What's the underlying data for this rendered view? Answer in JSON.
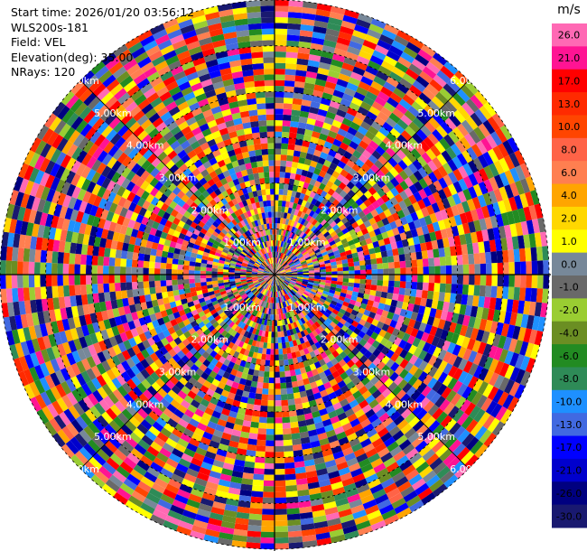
{
  "info": {
    "start_time": "Start time: 2026/01/20 03:56:12",
    "instrument": "WLS200s-181",
    "field": "Field: VEL",
    "elevation": "Elevation(deg): 35.00",
    "nrays": "NRays: 120"
  },
  "chart_data": {
    "type": "heatmap",
    "projection": "polar-ppi",
    "field": "VEL",
    "nrays": 120,
    "ring_labels": [
      "1.00km",
      "2.00km",
      "3.00km",
      "4.00km",
      "5.00km",
      "6.00km"
    ],
    "range_km_max": 6.0,
    "colorbar": {
      "unit": "m/s",
      "ticks": [
        "26.0",
        "21.0",
        "17.0",
        "13.0",
        "10.0",
        "8.0",
        "6.0",
        "4.0",
        "2.0",
        "1.0",
        "0.0",
        "-1.0",
        "-2.0",
        "-4.0",
        "-6.0",
        "-8.0",
        "-10.0",
        "-13.0",
        "-17.0",
        "-21.0",
        "-26.0",
        "-30.0"
      ],
      "colors": [
        "#ff69b4",
        "#ff1493",
        "#ff0000",
        "#ff2a00",
        "#ff4500",
        "#ff6347",
        "#ff7f50",
        "#ffa500",
        "#ffd700",
        "#ffff00",
        "#778899",
        "#696969",
        "#9acd32",
        "#6b8e23",
        "#228b22",
        "#2e8b57",
        "#1e90ff",
        "#4169e1",
        "#0000ff",
        "#0000cd",
        "#000080",
        "#191970"
      ]
    }
  }
}
